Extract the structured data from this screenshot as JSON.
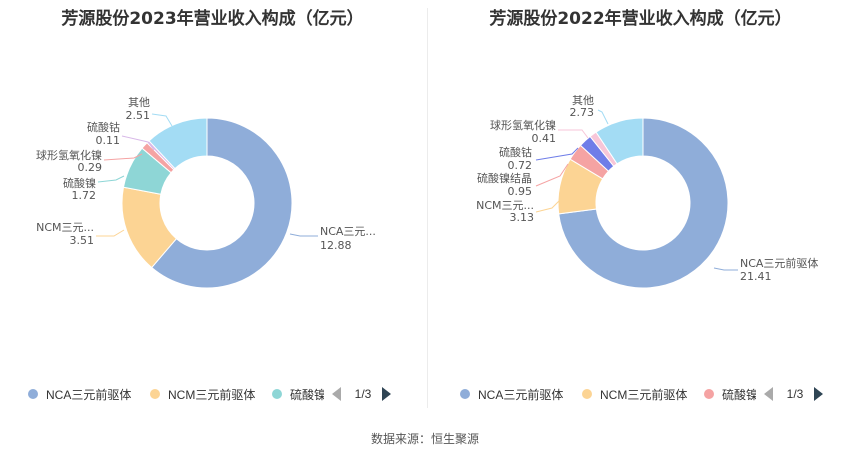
{
  "source": "数据来源：恒生聚源",
  "chart_data": [
    {
      "type": "pie",
      "title": "芳源股份2023年营业收入构成（亿元）",
      "categories": [
        "NCA三元前驱体",
        "NCM三元前驱体",
        "硫酸镍",
        "球形氢氧化镍",
        "硫酸钴",
        "其他"
      ],
      "label_names": [
        "NCA三元...",
        "NCM三元...",
        "硫酸镍",
        "球形氢氧化镍",
        "硫酸钴",
        "其他"
      ],
      "values": [
        12.88,
        3.51,
        1.72,
        0.29,
        0.11,
        2.51
      ],
      "colors": [
        "#8fadd9",
        "#fcd494",
        "#8ed6d6",
        "#f5a3a3",
        "#d8b8e8",
        "#a3dcf4"
      ],
      "legend": {
        "items": [
          "NCA三元前驱体",
          "NCM三元前驱体",
          "硫酸镍"
        ],
        "colors": [
          "#8fadd9",
          "#fcd494",
          "#8ed6d6"
        ],
        "page": "1/3",
        "position": "bottom"
      }
    },
    {
      "type": "pie",
      "title": "芳源股份2022年营业收入构成（亿元）",
      "categories": [
        "NCA三元前驱体",
        "NCM三元前驱体",
        "硫酸镍结晶",
        "硫酸钴",
        "球形氢氧化镍",
        "其他"
      ],
      "label_names": [
        "NCA三元前驱体",
        "NCM三元...",
        "硫酸镍结晶",
        "硫酸钴",
        "球形氢氧化镍",
        "其他"
      ],
      "values": [
        21.41,
        3.13,
        0.95,
        0.72,
        0.41,
        2.73
      ],
      "colors": [
        "#8fadd9",
        "#fcd494",
        "#f5a3a3",
        "#6f7de8",
        "#f7c6d8",
        "#a3dcf4"
      ],
      "legend": {
        "items": [
          "NCA三元前驱体",
          "NCM三元前驱体",
          "硫酸镍结晶"
        ],
        "colors": [
          "#8fadd9",
          "#fcd494",
          "#f5a3a3"
        ],
        "page": "1/3",
        "position": "bottom"
      }
    }
  ]
}
